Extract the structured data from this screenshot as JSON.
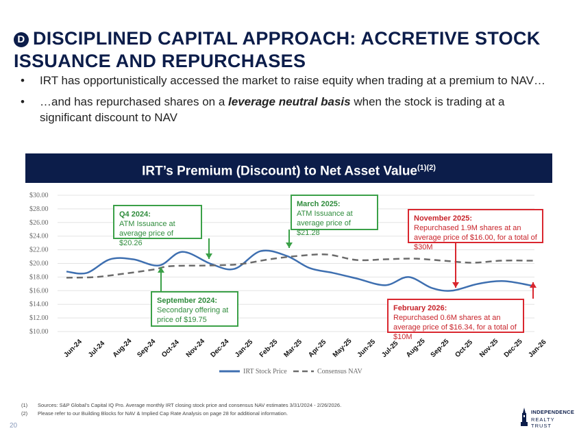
{
  "header": {
    "badge": "D",
    "title_line1": "DISCIPLINED CAPITAL APPROACH: ACCRETIVE STOCK",
    "title_line2": "ISSUANCE AND REPURCHASES"
  },
  "bullets": {
    "b1": "IRT has opportunistically accessed the market to raise equity when trading at a premium to NAV…",
    "b2_pre": "…and has repurchased shares on a ",
    "b2_em": "leverage neutral basis",
    "b2_post": " when the stock is trading at a significant discount to NAV",
    "marker": "•"
  },
  "banner": {
    "title": "IRT’s Premium (Discount) to Net Asset Value",
    "sup": "(1)(2)"
  },
  "chart_data": {
    "type": "line",
    "title": "IRT’s Premium (Discount) to Net Asset Value",
    "ylim": [
      10,
      30
    ],
    "y_ticks": [
      "$30.00",
      "$28.00",
      "$26.00",
      "$24.00",
      "$22.00",
      "$20.00",
      "$18.00",
      "$16.00",
      "$14.00",
      "$12.00",
      "$10.00"
    ],
    "categories": [
      "Jun-24",
      "Jul-24",
      "Aug-24",
      "Sep-24",
      "Oct-24",
      "Nov-24",
      "Dec-24",
      "Jan-25",
      "Feb-25",
      "Mar-25",
      "Apr-25",
      "May-25",
      "Jun-25",
      "Jul-25",
      "Aug-25",
      "Sep-25",
      "Oct-25",
      "Nov-25",
      "Dec-25",
      "Jan-26"
    ],
    "series": [
      {
        "name": "IRT Stock Price",
        "color": "#3e6fb0",
        "style": "solid",
        "values": [
          [
            0,
            18.8
          ],
          [
            0.7,
            18.6
          ],
          [
            1.5,
            20.6
          ],
          [
            2.3,
            20.6
          ],
          [
            3.2,
            19.7
          ],
          [
            4.0,
            21.7
          ],
          [
            5.0,
            19.9
          ],
          [
            5.8,
            19.2
          ],
          [
            6.7,
            21.8
          ],
          [
            7.6,
            21.1
          ],
          [
            8.4,
            19.3
          ],
          [
            9.2,
            18.6
          ],
          [
            10.0,
            17.8
          ],
          [
            11.0,
            16.8
          ],
          [
            11.8,
            18.0
          ],
          [
            12.6,
            16.4
          ],
          [
            13.3,
            16.0
          ],
          [
            14.2,
            17.0
          ],
          [
            15.1,
            17.4
          ],
          [
            16.1,
            16.7
          ]
        ]
      },
      {
        "name": "Consensus NAV",
        "color": "#6b6b6b",
        "style": "dashed",
        "values": [
          [
            0,
            17.9
          ],
          [
            1,
            18.0
          ],
          [
            2,
            18.5
          ],
          [
            3,
            19.1
          ],
          [
            3.6,
            19.6
          ],
          [
            5,
            19.7
          ],
          [
            6,
            19.9
          ],
          [
            7,
            20.6
          ],
          [
            8,
            21.1
          ],
          [
            9,
            21.3
          ],
          [
            10,
            20.5
          ],
          [
            11,
            20.6
          ],
          [
            12,
            20.7
          ],
          [
            13,
            20.4
          ],
          [
            14,
            20.1
          ],
          [
            15,
            20.4
          ],
          [
            16.1,
            20.4
          ]
        ]
      }
    ],
    "legend": [
      "IRT Stock Price",
      "Consensus NAV"
    ]
  },
  "callouts": {
    "q4": {
      "head": "Q4 2024:",
      "body": "ATM Issuance at average price of $20.26"
    },
    "mar": {
      "head": "March 2025:",
      "body": "ATM Issuance at average price of $21.28"
    },
    "nov": {
      "head": "November 2025:",
      "body": "Repurchased 1.9M shares at an average price of $16.00, for a total of $30M"
    },
    "sep": {
      "head": "September 2024:",
      "body": "Secondary offering at price of $19.75"
    },
    "feb": {
      "head": "February 2026:",
      "body": "Repurchased 0.6M shares at an average price of $16.34, for a total of $10M"
    }
  },
  "footnotes": [
    {
      "n": "(1)",
      "text": "Sources: S&P Global’s Capital IQ Pro. Average monthly IRT closing stock price and consensus NAV estimates 3/31/2024 - 2/26/2026."
    },
    {
      "n": "(2)",
      "text": "Please refer to our Building Blocks for NAV & Implied Cap Rate Analysis on page 28 for additional information."
    }
  ],
  "page_number": "20",
  "logo": {
    "line1": "INDEPENDENCE",
    "line2": "REALTY TRUST"
  }
}
